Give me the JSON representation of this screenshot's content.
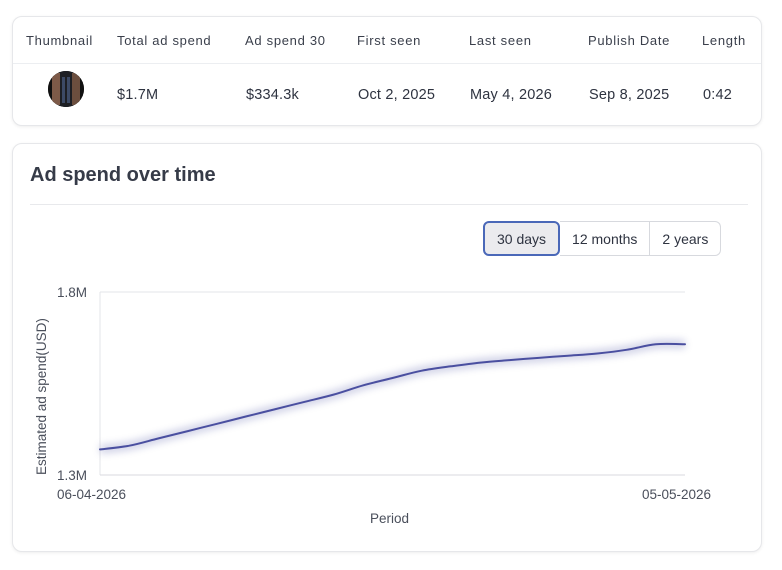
{
  "table": {
    "headers": [
      "Thumbnail",
      "Total ad spend",
      "Ad spend 30",
      "First seen",
      "Last seen",
      "Publish Date",
      "Length"
    ],
    "row": {
      "total_ad_spend": "$1.7M",
      "ad_spend_30": "$334.3k",
      "first_seen": "Oct 2, 2025",
      "last_seen": "May 4, 2026",
      "publish_date": "Sep 8, 2025",
      "length": "0:42"
    }
  },
  "chart_section": {
    "title": "Ad spend over time",
    "range_options": [
      "30 days",
      "12 months",
      "2 years"
    ],
    "selected_range": "30 days"
  },
  "chart_data": {
    "type": "line",
    "title": "",
    "xlabel": "Period",
    "ylabel": "Estimated ad spend(USD)",
    "ylim": [
      1.3,
      1.8
    ],
    "y_unit": "M",
    "y_ticks": [
      "1.3M",
      "1.8M"
    ],
    "x_tick_labels": [
      "06-04-2026",
      "05-05-2026"
    ],
    "grid": false,
    "line_color": "#4a4fa0",
    "series": [
      {
        "values": [
          1.37,
          1.38,
          1.4,
          1.42,
          1.44,
          1.46,
          1.48,
          1.5,
          1.52,
          1.545,
          1.565,
          1.585,
          1.597,
          1.607,
          1.614,
          1.62,
          1.626,
          1.632,
          1.642,
          1.657,
          1.657
        ]
      }
    ]
  }
}
